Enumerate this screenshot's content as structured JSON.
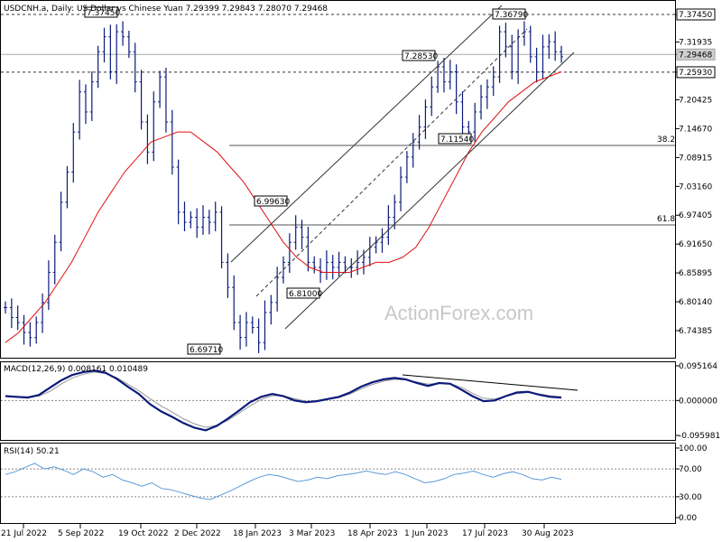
{
  "header": {
    "title": "USDCNH.a, Daily:  US Dollar vs Chinese Yuan  7.29399 7.29843 7.28070 7.29468"
  },
  "watermark": "ActionForex.com",
  "colors": {
    "candle": "#0a1a7a",
    "ma": "#e01010",
    "macd": "#0a1a7a",
    "rsi": "#5a9ad8",
    "grid": "#808080"
  },
  "chart_data": [
    {
      "type": "line",
      "title": "USDCNH.a, Daily:  US Dollar vs Chinese Yuan  7.29399 7.29843 7.28070 7.29468",
      "ylim": [
        6.7,
        7.405
      ],
      "y_ticks": [
        "7.37450",
        "7.31935",
        "7.29468",
        "7.25930",
        "7.20425",
        "7.14670",
        "7.08915",
        "7.03160",
        "6.97405",
        "6.91650",
        "6.85895",
        "6.80140",
        "6.74385"
      ],
      "x_ticks": [
        "21 Jul 2022",
        "5 Sep 2022",
        "19 Oct 2022",
        "2 Dec 2022",
        "18 Jan 2023",
        "3 Mar 2023",
        "18 Apr 2023",
        "1 Jun 2023",
        "17 Jul 2023",
        "30 Aug 2023"
      ],
      "current_price": "7.29468",
      "support_level": "7.25930",
      "resistance_level": "7.37450",
      "price_labels": [
        "7.37450",
        "6.69710",
        "6.99630",
        "6.81000",
        "7.28530",
        "7.11540",
        "7.36790"
      ],
      "fib_labels": [
        "38.2",
        "61.8"
      ],
      "series": [
        {
          "name": "",
          "values": [
            6.79,
            6.77,
            6.76,
            6.74,
            6.73,
            6.76,
            6.8,
            6.86,
            6.92,
            7.0,
            7.06,
            7.14,
            7.22,
            7.18,
            7.24,
            7.3,
            7.33,
            7.26,
            7.34,
            7.33,
            7.3,
            7.24,
            7.16,
            7.1,
            7.2,
            7.25,
            7.16,
            7.07,
            6.98,
            6.96,
            6.97,
            6.95,
            6.97,
            6.96,
            6.98,
            6.88,
            6.83,
            6.76,
            6.73,
            6.76,
            6.75,
            6.72,
            6.78,
            6.8,
            6.85,
            6.88,
            6.92,
            6.95,
            6.93,
            6.88,
            6.87,
            6.86,
            6.88,
            6.87,
            6.88,
            6.87,
            6.87,
            6.88,
            6.89,
            6.91,
            6.92,
            6.93,
            6.97,
            7.0,
            7.05,
            7.09,
            7.12,
            7.15,
            7.19,
            7.23,
            7.27,
            7.24,
            7.26,
            7.2,
            7.15,
            7.14,
            7.18,
            7.21,
            7.23,
            7.25,
            7.34,
            7.31,
            7.26,
            7.33,
            7.34,
            7.29,
            7.26,
            7.31,
            7.32,
            7.3,
            7.29
          ]
        },
        {
          "name": "",
          "values": [
            6.72,
            6.74,
            6.77,
            6.8,
            6.84,
            6.88,
            6.93,
            6.98,
            7.02,
            7.06,
            7.09,
            7.12,
            7.13,
            7.14,
            7.14,
            7.12,
            7.1,
            7.07,
            7.04,
            7.0,
            6.96,
            6.92,
            6.89,
            6.87,
            6.86,
            6.86,
            6.86,
            6.87,
            6.88,
            6.88,
            6.89,
            6.91,
            6.95,
            7.0,
            7.05,
            7.1,
            7.14,
            7.17,
            7.2,
            7.22,
            7.24,
            7.25,
            7.26
          ]
        }
      ],
      "trendlines": true
    },
    {
      "type": "line",
      "title": "MACD(12,26,9) 0.008161 0.010489",
      "ylim": [
        -0.095981,
        0.095164
      ],
      "y_ticks": [
        "0.095164",
        "0.000000",
        "-0.095981"
      ],
      "series": [
        {
          "name": "",
          "values": [
            0.012,
            0.01,
            0.008,
            0.015,
            0.035,
            0.055,
            0.07,
            0.078,
            0.082,
            0.076,
            0.06,
            0.038,
            0.018,
            -0.01,
            -0.03,
            -0.045,
            -0.062,
            -0.075,
            -0.082,
            -0.07,
            -0.05,
            -0.028,
            -0.005,
            0.01,
            0.018,
            0.012,
            0.0,
            -0.005,
            -0.002,
            0.004,
            0.01,
            0.022,
            0.038,
            0.05,
            0.058,
            0.062,
            0.058,
            0.048,
            0.04,
            0.048,
            0.046,
            0.03,
            0.012,
            -0.002,
            0.0,
            0.012,
            0.022,
            0.024,
            0.016,
            0.01,
            0.008
          ]
        },
        {
          "name": "",
          "values": [
            0.012,
            0.011,
            0.01,
            0.012,
            0.025,
            0.045,
            0.062,
            0.072,
            0.078,
            0.074,
            0.063,
            0.045,
            0.027,
            0.005,
            -0.015,
            -0.032,
            -0.05,
            -0.064,
            -0.074,
            -0.068,
            -0.055,
            -0.035,
            -0.015,
            0.003,
            0.013,
            0.013,
            0.005,
            -0.002,
            -0.002,
            0.003,
            0.008,
            0.018,
            0.032,
            0.044,
            0.053,
            0.058,
            0.057,
            0.051,
            0.045,
            0.047,
            0.046,
            0.036,
            0.02,
            0.006,
            0.004,
            0.011,
            0.019,
            0.022,
            0.018,
            0.013,
            0.01
          ]
        }
      ],
      "trendlines": true
    },
    {
      "type": "line",
      "title": "RSI(14) 50.21",
      "ylim": [
        0,
        100
      ],
      "y_ticks": [
        "100.00",
        "70.00",
        "30.00",
        "0.00"
      ],
      "series": [
        {
          "name": "",
          "values": [
            62,
            66,
            72,
            78,
            70,
            73,
            68,
            62,
            70,
            66,
            58,
            62,
            54,
            50,
            45,
            50,
            42,
            40,
            36,
            32,
            28,
            26,
            32,
            38,
            45,
            52,
            58,
            62,
            60,
            56,
            52,
            54,
            58,
            56,
            60,
            62,
            64,
            67,
            64,
            62,
            66,
            62,
            56,
            50,
            52,
            56,
            62,
            64,
            67,
            62,
            58,
            63,
            66,
            62,
            56,
            54,
            58,
            55
          ]
        }
      ]
    }
  ]
}
